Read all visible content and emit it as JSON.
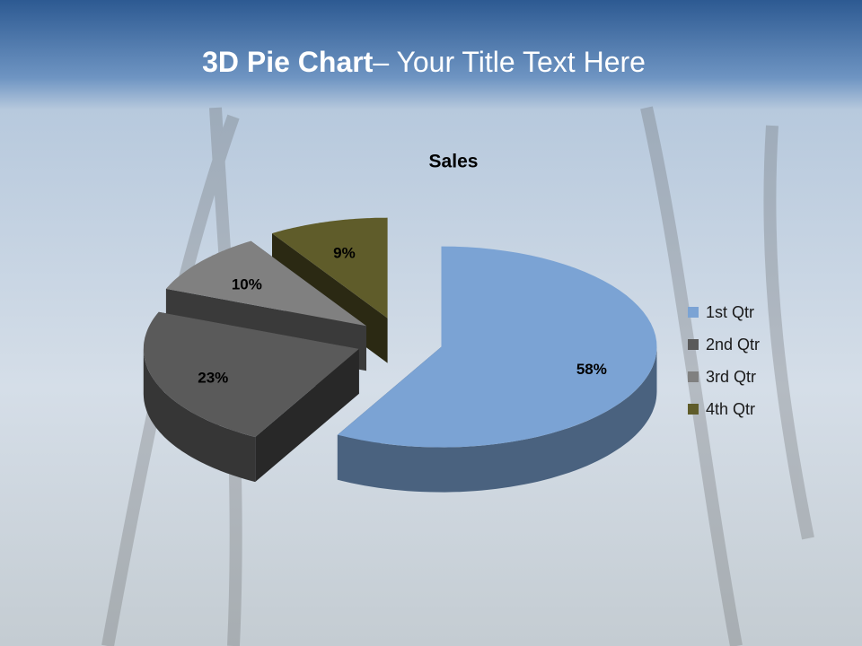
{
  "slide_title": {
    "bold": "3D Pie Chart",
    "rest": "– Your Title Text Here"
  },
  "chart_data": {
    "type": "pie3d",
    "title": "Sales",
    "categories": [
      "1st Qtr",
      "2nd Qtr",
      "3rd Qtr",
      "4th Qtr"
    ],
    "values": [
      58,
      23,
      10,
      9
    ],
    "value_labels": [
      "58%",
      "23%",
      "10%",
      "9%"
    ],
    "colors": [
      "#7ba3d4",
      "#5a5a5a",
      "#808080",
      "#5f5c2a"
    ],
    "legend": "right"
  }
}
